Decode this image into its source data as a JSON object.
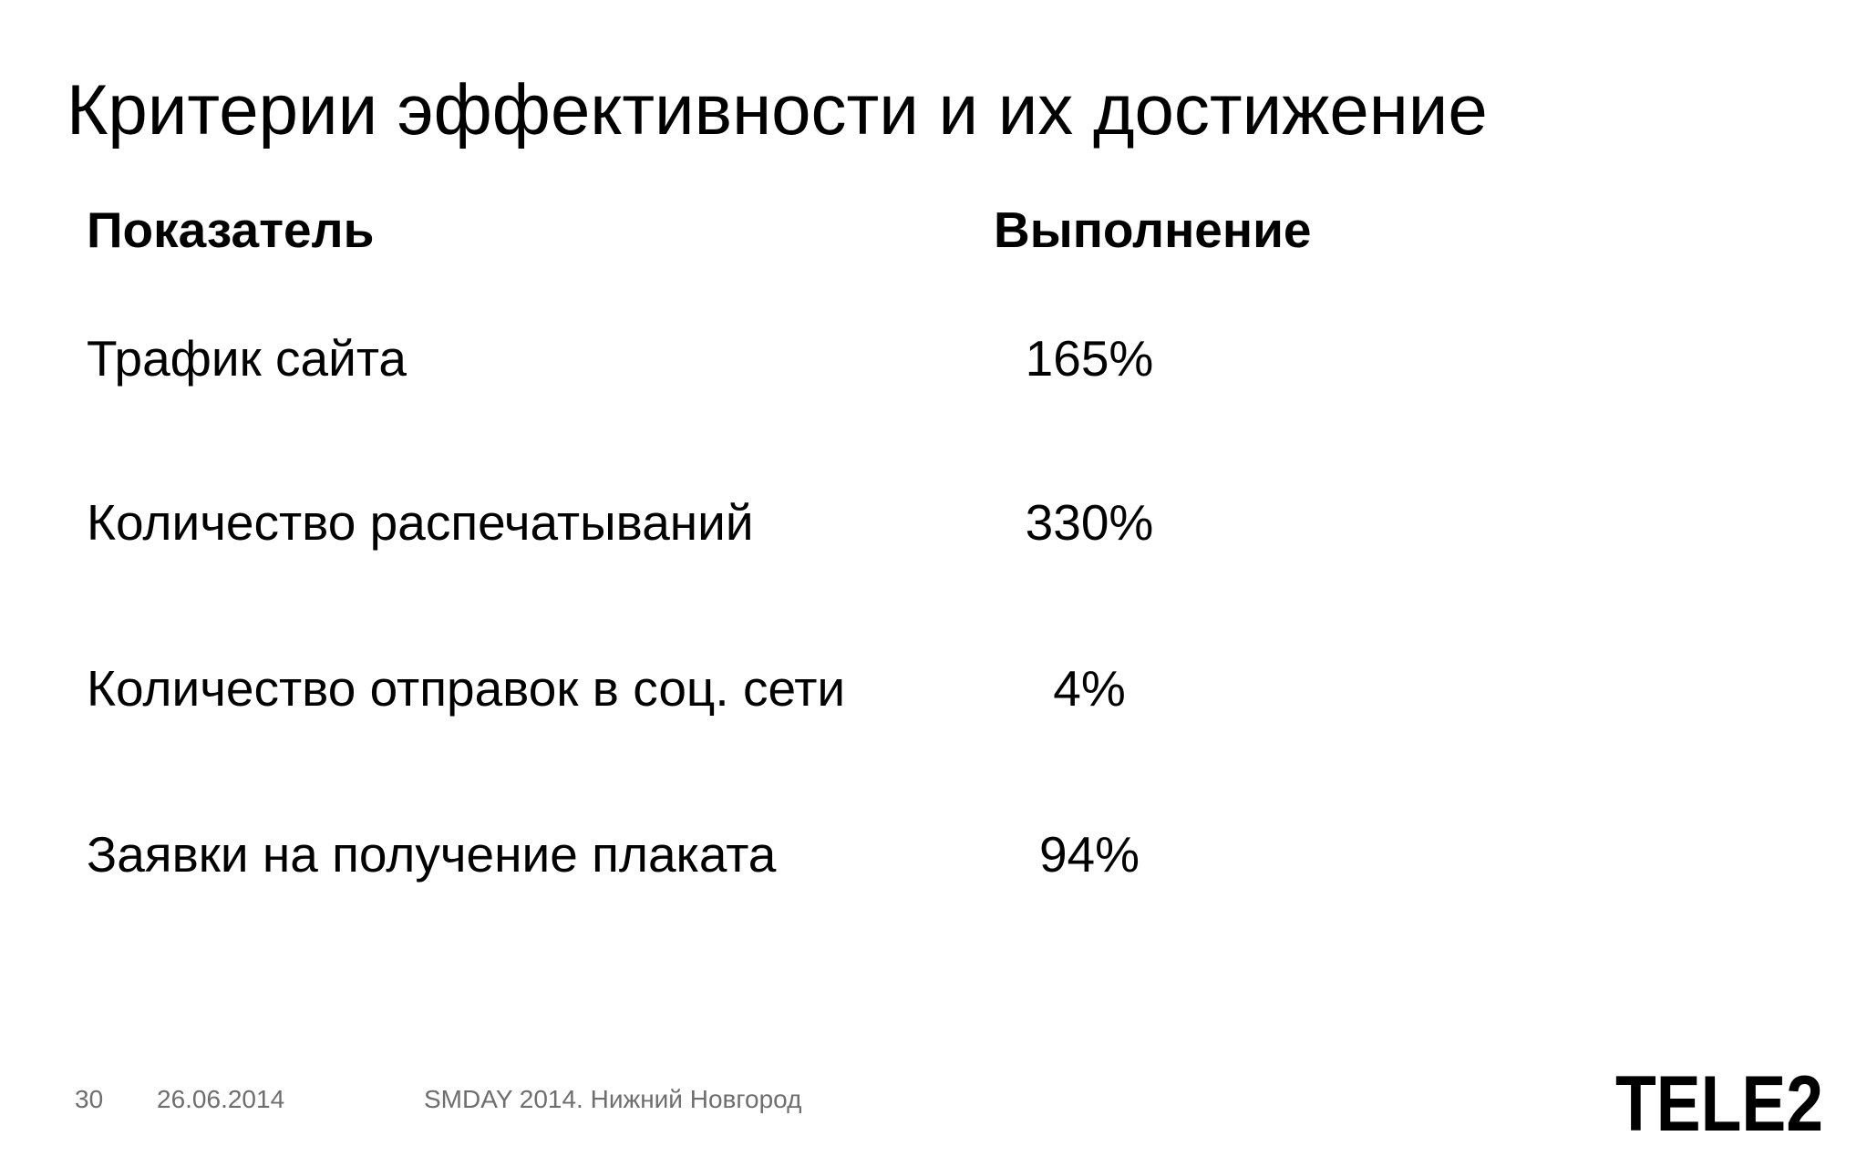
{
  "slide": {
    "title": "Критерии эффективности и их достижение"
  },
  "table": {
    "headers": {
      "indicator": "Показатель",
      "value": "Выполнение"
    },
    "rows": [
      {
        "label": "Трафик сайта",
        "value": "165%"
      },
      {
        "label": "Количество распечатываний",
        "value": "330%"
      },
      {
        "label": "Количество отправок в соц. сети",
        "value": "4%"
      },
      {
        "label": "Заявки на получение плаката",
        "value": "94%"
      }
    ]
  },
  "footer": {
    "page_number": "30",
    "date": "26.06.2014",
    "event": "SMDAY 2014. Нижний Новгород"
  },
  "logo": {
    "text": "TELE2",
    "color": "#000000"
  }
}
